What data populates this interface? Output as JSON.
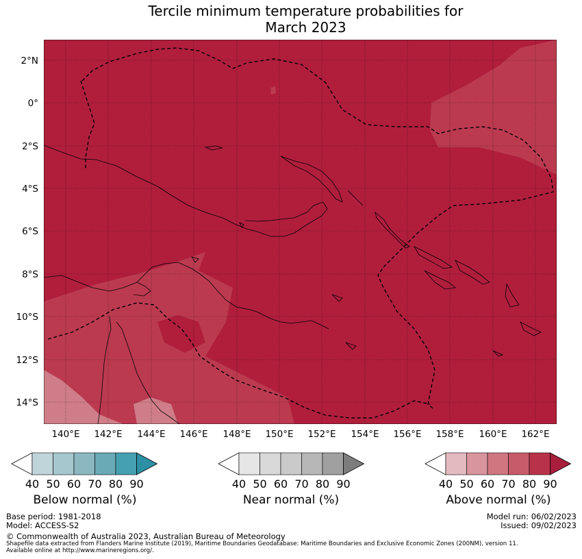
{
  "title_line1": "Tercile minimum temperature probabilities for",
  "title_line2": "March 2023",
  "map": {
    "lat_labels": [
      "2°N",
      "0°",
      "2°S",
      "4°S",
      "6°S",
      "8°S",
      "10°S",
      "12°S",
      "14°S"
    ],
    "lon_labels": [
      "140°E",
      "142°E",
      "144°E",
      "146°E",
      "148°E",
      "150°E",
      "152°E",
      "154°E",
      "156°E",
      "158°E",
      "160°E",
      "162°E"
    ],
    "background_color": "#b01e3c",
    "lower_class_color": "#bb3a50",
    "lowest_class_color": "#cf7d88"
  },
  "legend": {
    "ticks": [
      "40",
      "50",
      "60",
      "70",
      "80",
      "90"
    ],
    "below": {
      "title": "Below normal (%)",
      "colors": [
        "#bfd5da",
        "#a6c7cd",
        "#8bb7c1",
        "#6aa9b6",
        "#45a0b1",
        "#2c8fa4"
      ]
    },
    "near": {
      "title": "Near normal (%)",
      "colors": [
        "#e6e6e6",
        "#d9d9d9",
        "#cacaca",
        "#b7b7b7",
        "#a0a0a0",
        "#7d7d7d"
      ]
    },
    "above": {
      "title": "Above normal (%)",
      "colors": [
        "#e3bac0",
        "#d8959d",
        "#cf7681",
        "#c85b6a",
        "#b83349",
        "#a81e3c"
      ]
    }
  },
  "footer": {
    "base_period": "Base period: 1981-2018",
    "model": "Model: ACCESS-S2",
    "model_run": "Model run: 06/02/2023",
    "issued": "Issued: 09/02/2023",
    "copyright": "© Commonwealth of Australia 2023, Australian Bureau of Meteorology",
    "shapefile_line1": "Shapefile data extracted from Flanders Marine Institute (2019), Maritime Boundaries Geodatabase: Maritime Boundaries and Exclusive Economic Zones (200NM), version 11.",
    "shapefile_line2": "Available online at http://www.marineregions.org/."
  }
}
